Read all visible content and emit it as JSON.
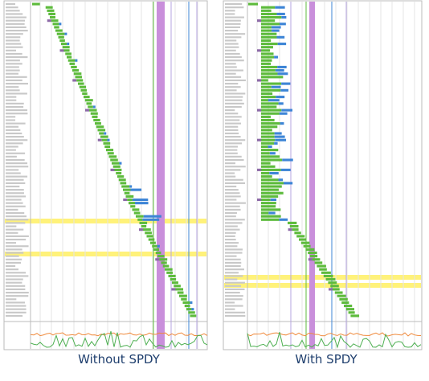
{
  "panels": [
    {
      "caption": "Without SPDY"
    },
    {
      "caption": "With SPDY"
    }
  ]
}
